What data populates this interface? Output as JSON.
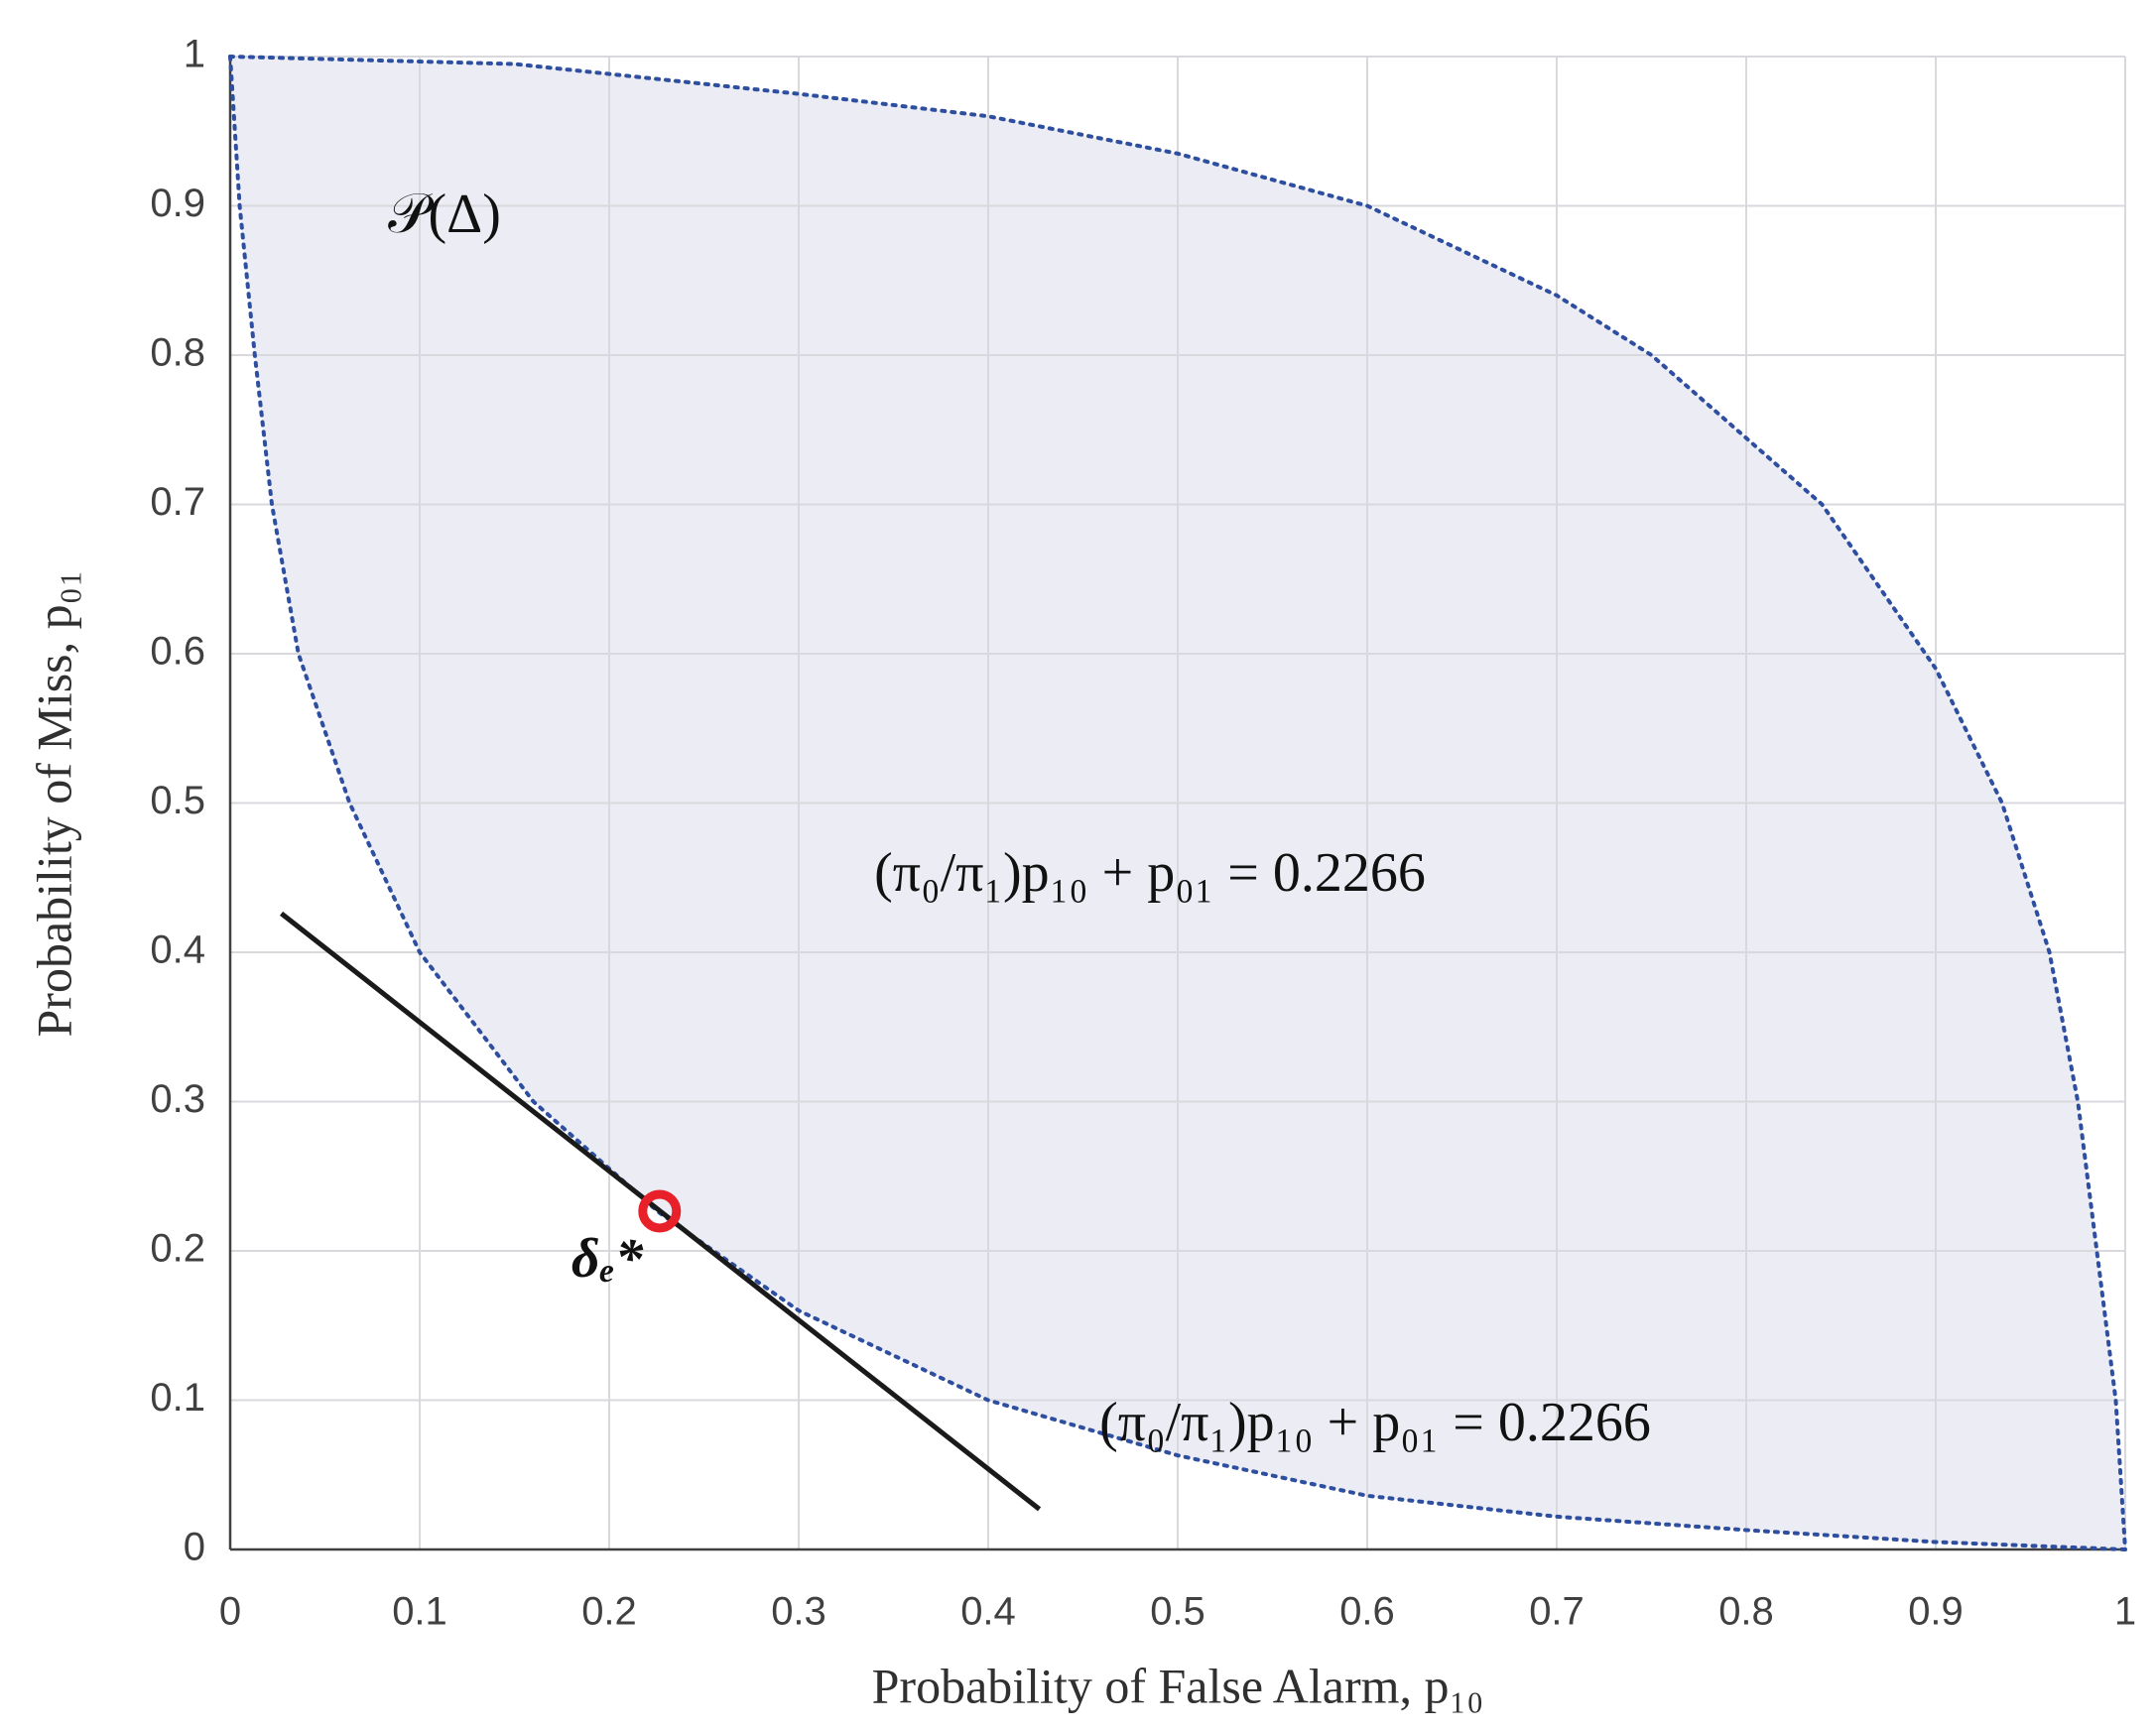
{
  "chart_data": {
    "type": "area",
    "xlabel": "Probability of False Alarm, p₁₀",
    "ylabel": "Probability of Miss, p₀₁",
    "xlim": [
      0,
      1
    ],
    "ylim": [
      0,
      1
    ],
    "xticks": [
      0,
      0.1,
      0.2,
      0.3,
      0.4,
      0.5,
      0.6,
      0.7,
      0.8,
      0.9,
      1
    ],
    "yticks": [
      0,
      0.1,
      0.2,
      0.3,
      0.4,
      0.5,
      0.6,
      0.7,
      0.8,
      0.9,
      1
    ],
    "grid": true,
    "fill": "#ecedf4",
    "series": [
      {
        "style": "dotted",
        "color": "#2e4ea0",
        "x": [
          0,
          0.005,
          0.013,
          0.022,
          0.036,
          0.063,
          0.1,
          0.16,
          0.226,
          0.3,
          0.4,
          0.5,
          0.6,
          0.7,
          0.8,
          0.9,
          1
        ],
        "values": [
          1,
          0.9,
          0.8,
          0.7,
          0.6,
          0.5,
          0.4,
          0.3,
          0.226,
          0.16,
          0.1,
          0.063,
          0.036,
          0.022,
          0.013,
          0.005,
          0
        ]
      },
      {
        "style": "dotted",
        "color": "#2e4ea0",
        "x": [
          0,
          0.15,
          0.3,
          0.4,
          0.5,
          0.6,
          0.7,
          0.75,
          0.84,
          0.9,
          0.935,
          0.96,
          0.975,
          0.985,
          0.995,
          1
        ],
        "values": [
          1,
          0.995,
          0.975,
          0.96,
          0.935,
          0.9,
          0.84,
          0.8,
          0.7,
          0.59,
          0.5,
          0.4,
          0.3,
          0.2,
          0.1,
          0
        ]
      },
      {
        "style": "solid",
        "color": "#1a1a1a",
        "x": [
          0.027,
          0.427
        ],
        "values": [
          0.426,
          0.027
        ]
      },
      {
        "style": "marker",
        "color": "#e8202a",
        "x": [
          0.2266
        ],
        "values": [
          0.2266
        ]
      }
    ],
    "annotations": [
      "𝒫(Δ)",
      "(π₀/π₁)p₁₀ + p₀₁ = 0.2266",
      "(π₀/π₁)p₁₀ + p₀₁ = 0.2266",
      "δₑ*"
    ]
  }
}
